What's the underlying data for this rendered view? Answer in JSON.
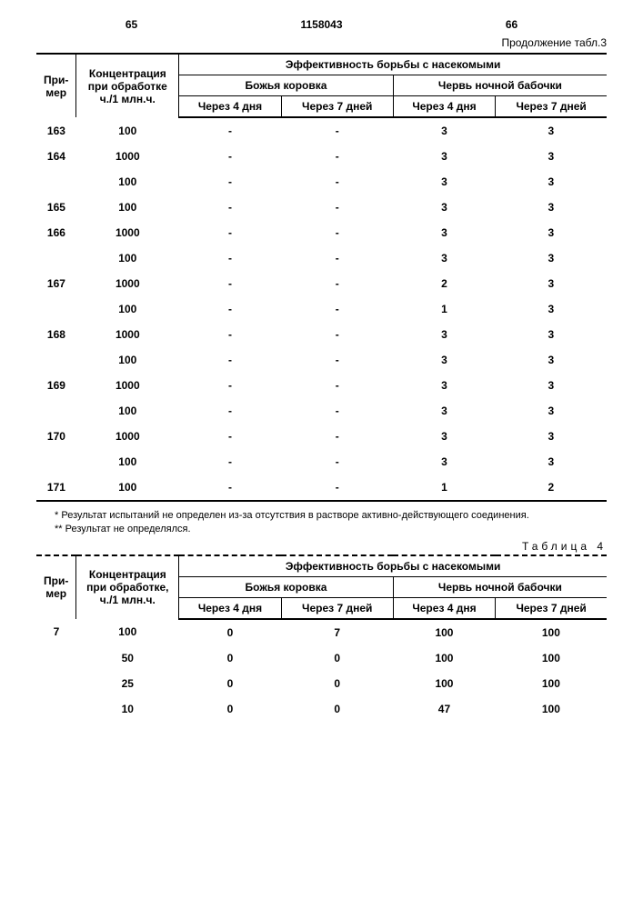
{
  "page_left": "65",
  "doc_number": "1158043",
  "page_right": "66",
  "continuation": "Продолжение табл.3",
  "t3": {
    "hdr_primer": "При-\nмер",
    "hdr_konc": "Концентрация при обработке ч./1 млн.ч.",
    "hdr_eff": "Эффективность борьбы с насекомыми",
    "hdr_sub1": "Божья коровка",
    "hdr_sub2": "Червь ночной бабочки",
    "hdr_4d": "Через 4 дня",
    "hdr_7d": "Через 7 дней",
    "rows": [
      {
        "p": "163",
        "k": "100",
        "a": "-",
        "b": "-",
        "c": "3",
        "d": "3"
      },
      {
        "p": "164",
        "k": "1000",
        "a": "-",
        "b": "-",
        "c": "3",
        "d": "3"
      },
      {
        "p": "",
        "k": "100",
        "a": "-",
        "b": "-",
        "c": "3",
        "d": "3"
      },
      {
        "p": "165",
        "k": "100",
        "a": "-",
        "b": "-",
        "c": "3",
        "d": "3"
      },
      {
        "p": "166",
        "k": "1000",
        "a": "-",
        "b": "-",
        "c": "3",
        "d": "3"
      },
      {
        "p": "",
        "k": "100",
        "a": "-",
        "b": "-",
        "c": "3",
        "d": "3"
      },
      {
        "p": "167",
        "k": "1000",
        "a": "-",
        "b": "-",
        "c": "2",
        "d": "3"
      },
      {
        "p": "",
        "k": "100",
        "a": "-",
        "b": "-",
        "c": "1",
        "d": "3"
      },
      {
        "p": "168",
        "k": "1000",
        "a": "-",
        "b": "-",
        "c": "3",
        "d": "3"
      },
      {
        "p": "",
        "k": "100",
        "a": "-",
        "b": "-",
        "c": "3",
        "d": "3"
      },
      {
        "p": "169",
        "k": "1000",
        "a": "-",
        "b": "-",
        "c": "3",
        "d": "3"
      },
      {
        "p": "",
        "k": "100",
        "a": "-",
        "b": "-",
        "c": "3",
        "d": "3"
      },
      {
        "p": "170",
        "k": "1000",
        "a": "-",
        "b": "-",
        "c": "3",
        "d": "3"
      },
      {
        "p": "",
        "k": "100",
        "a": "-",
        "b": "-",
        "c": "3",
        "d": "3"
      },
      {
        "p": "171",
        "k": "100",
        "a": "-",
        "b": "-",
        "c": "1",
        "d": "2"
      }
    ]
  },
  "note1": "* Результат испытаний не определен из-за отсутствия в растворе активно-действующего соединения.",
  "note2": "** Результат не определялся.",
  "table4_label": "Таблица 4",
  "t4": {
    "hdr_primer": "При-\nмер",
    "hdr_konc": "Концентрация при обработке, ч./1 млн.ч.",
    "hdr_eff": "Эффективность борьбы с насекомыми",
    "hdr_sub1": "Божья коровка",
    "hdr_sub2": "Червь ночной бабочки",
    "hdr_4d": "Через 4 дня",
    "hdr_7d": "Через 7 дней",
    "rows": [
      {
        "p": "7",
        "k": "100",
        "a": "0",
        "b": "7",
        "c": "100",
        "d": "100"
      },
      {
        "p": "",
        "k": "50",
        "a": "0",
        "b": "0",
        "c": "100",
        "d": "100"
      },
      {
        "p": "",
        "k": "25",
        "a": "0",
        "b": "0",
        "c": "100",
        "d": "100"
      },
      {
        "p": "",
        "k": "10",
        "a": "0",
        "b": "0",
        "c": "47",
        "d": "100"
      }
    ]
  }
}
